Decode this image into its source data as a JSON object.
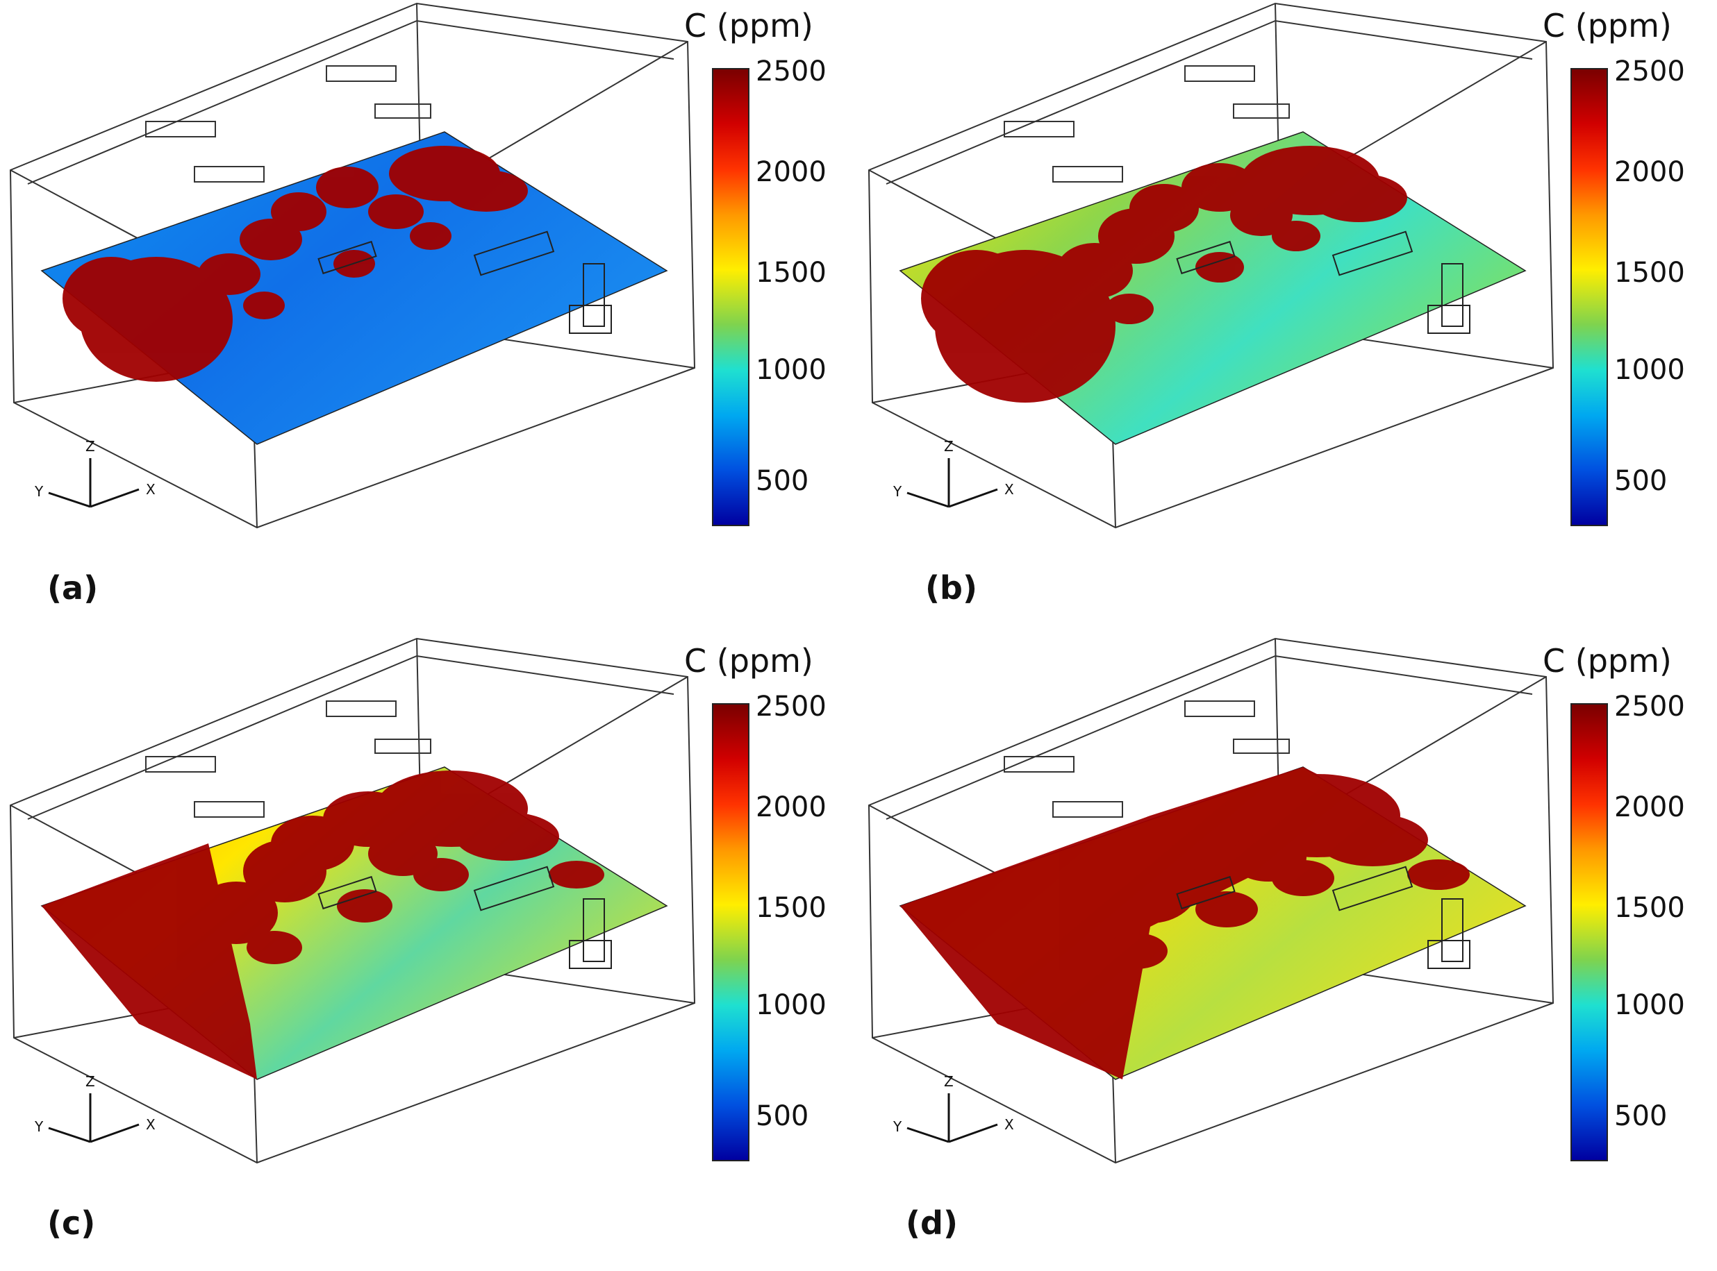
{
  "colorbar": {
    "title": "C (ppm)",
    "ticks": [
      "2500",
      "2000",
      "1500",
      "1000",
      "500"
    ]
  },
  "axes": {
    "z": "Z",
    "y": "Y",
    "x": "X"
  },
  "panels": [
    {
      "label": "(a)",
      "level": 0.1
    },
    {
      "label": "(b)",
      "level": 0.45
    },
    {
      "label": "(c)",
      "level": 0.7
    },
    {
      "label": "(d)",
      "level": 0.85
    }
  ],
  "colors": {
    "high": "#a00000",
    "red": "#e01010",
    "yellow": "#ffe600",
    "green": "#8fd64a",
    "cyan": "#20d0d0",
    "blue": "#1070e8"
  }
}
